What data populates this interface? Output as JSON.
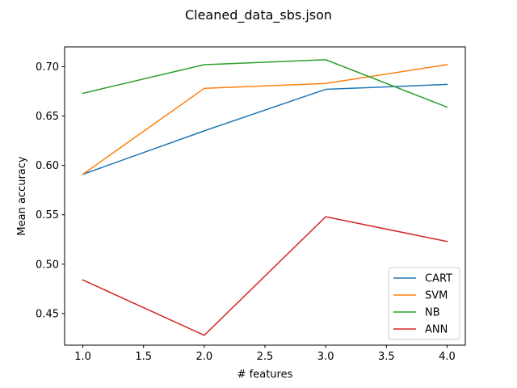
{
  "chart_data": {
    "type": "line",
    "title": "Cleaned_data_sbs.json",
    "xlabel": "# features",
    "ylabel": "Mean accuracy",
    "x": [
      1.0,
      2.0,
      3.0,
      4.0
    ],
    "xlim": [
      0.85,
      4.15
    ],
    "ylim": [
      0.418,
      0.72
    ],
    "xticks": [
      1.0,
      1.5,
      2.0,
      2.5,
      3.0,
      3.5,
      4.0
    ],
    "xtick_labels": [
      "1.0",
      "1.5",
      "2.0",
      "2.5",
      "3.0",
      "3.5",
      "4.0"
    ],
    "yticks": [
      0.45,
      0.5,
      0.55,
      0.6,
      0.65,
      0.7
    ],
    "ytick_labels": [
      "0.45",
      "0.50",
      "0.55",
      "0.60",
      "0.65",
      "0.70"
    ],
    "grid": false,
    "legend_position": "lower-right",
    "series": [
      {
        "name": "CART",
        "color": "#1f77b4",
        "values": [
          0.591,
          0.635,
          0.677,
          0.682
        ]
      },
      {
        "name": "SVM",
        "color": "#ff7f0e",
        "values": [
          0.591,
          0.678,
          0.683,
          0.702
        ]
      },
      {
        "name": "NB",
        "color": "#2ca02c",
        "values": [
          0.673,
          0.702,
          0.707,
          0.659
        ]
      },
      {
        "name": "ANN",
        "color": "#d62728",
        "values": [
          0.484,
          0.428,
          0.548,
          0.523
        ]
      }
    ]
  }
}
